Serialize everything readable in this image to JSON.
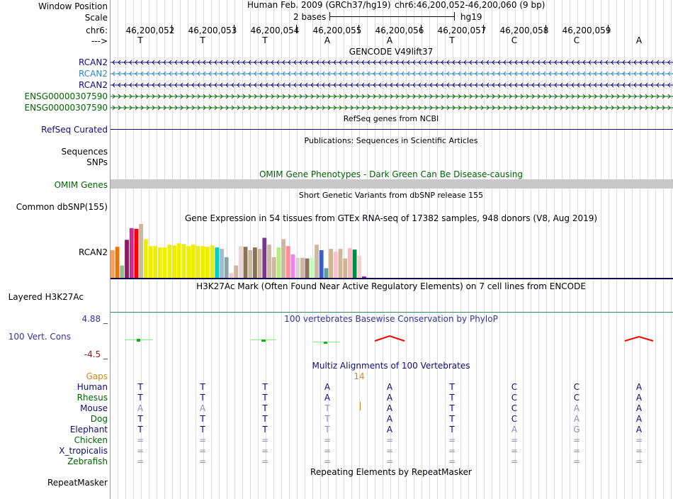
{
  "browser": {
    "position_label": "Window Position",
    "assembly": "Human Feb. 2009 (GRCh37/hg19)",
    "position": "chr6:46,200,052-46,200,060 (9 bp)",
    "scale_label": "Scale",
    "scale_text": "2 bases",
    "scale_db": "hg19",
    "chrom_label": "chr6:",
    "strand_label": "--->",
    "coordinates": [
      "46,200,052",
      "46,200,053",
      "46,200,054",
      "46,200,055",
      "46,200,056",
      "46,200,057",
      "46,200,058",
      "46,200,059"
    ],
    "bases": [
      "T",
      "T",
      "T",
      "A",
      "A",
      "T",
      "C",
      "C",
      "A"
    ]
  },
  "tracks": {
    "gencode": {
      "title": "GENCODE V49lift37",
      "items": [
        {
          "name": "RCAN2",
          "strand": "minus",
          "color": "#0c0c78"
        },
        {
          "name": "RCAN2",
          "strand": "minus",
          "color": "#2e86c1"
        },
        {
          "name": "RCAN2",
          "strand": "minus",
          "color": "#0c0c78"
        },
        {
          "name": "ENSG00000307590",
          "strand": "plus",
          "color": "#006400"
        },
        {
          "name": "ENSG00000307590",
          "strand": "plus",
          "color": "#006400"
        }
      ]
    },
    "refseq": {
      "title": "RefSeq genes from NCBI",
      "label": "RefSeq Curated"
    },
    "publications": {
      "title": "Publications: Sequences in Scientific Articles",
      "labels": [
        "Sequences",
        "SNPs"
      ]
    },
    "omim": {
      "title": "OMIM Gene Phenotypes - Dark Green Can Be Disease-causing",
      "label": "OMIM Genes"
    },
    "dbsnp": {
      "title": "Short Genetic Variants from dbSNP release 155",
      "label": "Common dbSNP(155)"
    },
    "gtex": {
      "title": "Gene Expression in 54 tissues from GTEx RNA-seq of 17382 samples, 948 donors (V8, Aug 2019)",
      "label": "RCAN2",
      "values": [
        40,
        45,
        18,
        55,
        72,
        71,
        78,
        56,
        46,
        46,
        44,
        44,
        48,
        47,
        50,
        49,
        46,
        48,
        46,
        46,
        45,
        47,
        44,
        42,
        30,
        7,
        18,
        46,
        45,
        40,
        44,
        42,
        58,
        48,
        30,
        44,
        56,
        46,
        34,
        29,
        29,
        28,
        29,
        48,
        40,
        14,
        42,
        38,
        42,
        28,
        43,
        41,
        32,
        2
      ],
      "colors": [
        "#f4a460",
        "#ee7600",
        "#8fbc8f",
        "#8b1c62",
        "#cd2990",
        "#ff0000",
        "#cdb79e",
        "#eeee00",
        "#eeee00",
        "#eeee00",
        "#eeee00",
        "#eeee00",
        "#eeee00",
        "#eeee00",
        "#eeee00",
        "#eeee00",
        "#eeee00",
        "#eeee00",
        "#eeee00",
        "#eeee00",
        "#eeee00",
        "#eeee00",
        "#00cdcd",
        "#9ac0cd",
        "#87a5ab",
        "#eecccc",
        "#cdb79e",
        "#eed5d2",
        "#8b7355",
        "#cdb79e",
        "#8b7355",
        "#cdb79e",
        "#7a378b",
        "#cdb79e",
        "#cdb79e",
        "#b4ee7a",
        "#cdb79e",
        "#ff8c9a",
        "#ee82ee",
        "#d3d3d3",
        "#cdb79e",
        "#8b7355",
        "#c1ffc1",
        "#cdb79e",
        "#3a5fcd",
        "#5f9ea0",
        "#d2b48c",
        "#ffc0cb",
        "#cdb79e",
        "#d2b48c",
        "#ffb6c1",
        "#008b45",
        "#eed5d2",
        "#b300b3"
      ]
    },
    "h3k27ac": {
      "title": "H3K27Ac Mark (Often Found Near Active Regulatory Elements) on 7 cell lines from ENCODE",
      "label": "Layered H3K27Ac"
    },
    "phylop": {
      "title": "100 vertebrates Basewise Conservation by PhyloP",
      "label": "100 Vert. Cons",
      "max_label": "4.88 _",
      "min_label": "-4.5 _"
    },
    "multiz": {
      "title": "Multiz Alignments of 100 Vertebrates",
      "gaps_label": "Gaps",
      "gap_count": "14",
      "species": [
        {
          "name": "Human",
          "bases": [
            "T",
            "T",
            "T",
            "A",
            "A",
            "T",
            "C",
            "C",
            "A"
          ],
          "dim": [
            0,
            0,
            0,
            0,
            0,
            0,
            0,
            0,
            0
          ]
        },
        {
          "name": "Rhesus",
          "bases": [
            "T",
            "T",
            "T",
            "A",
            "A",
            "T",
            "C",
            "C",
            "A"
          ],
          "dim": [
            0,
            0,
            0,
            0,
            0,
            0,
            0,
            0,
            0
          ]
        },
        {
          "name": "Mouse",
          "bases": [
            "A",
            "A",
            "T",
            "T",
            "A",
            "T",
            "C",
            "A",
            "A"
          ],
          "dim": [
            1,
            1,
            0,
            1,
            0,
            0,
            0,
            1,
            0
          ]
        },
        {
          "name": "Dog",
          "bases": [
            "T",
            "T",
            "T",
            "T",
            "A",
            "T",
            "C",
            "A",
            "A"
          ],
          "dim": [
            0,
            0,
            0,
            1,
            0,
            0,
            0,
            1,
            0
          ]
        },
        {
          "name": "Elephant",
          "bases": [
            "T",
            "T",
            "T",
            "T",
            "A",
            "T",
            "A",
            "G",
            "A"
          ],
          "dim": [
            0,
            0,
            0,
            1,
            0,
            0,
            1,
            1,
            0
          ]
        },
        {
          "name": "Chicken",
          "bases": [
            "=",
            "=",
            "=",
            "=",
            "=",
            "=",
            "=",
            "=",
            "="
          ],
          "dim": [
            1,
            1,
            1,
            1,
            1,
            1,
            1,
            1,
            1
          ]
        },
        {
          "name": "X_tropicalis",
          "bases": [
            "=",
            "=",
            "=",
            "=",
            "=",
            "=",
            "=",
            "=",
            "="
          ],
          "dim": [
            1,
            1,
            1,
            1,
            1,
            1,
            1,
            1,
            1
          ]
        },
        {
          "name": "Zebrafish",
          "bases": [
            "=",
            "=",
            "=",
            "=",
            "=",
            "=",
            "=",
            "=",
            "="
          ],
          "dim": [
            1,
            1,
            1,
            1,
            1,
            1,
            1,
            1,
            1
          ]
        }
      ]
    },
    "repeatmasker": {
      "title": "Repeating Elements by RepeatMasker",
      "label": "RepeatMasker"
    }
  }
}
